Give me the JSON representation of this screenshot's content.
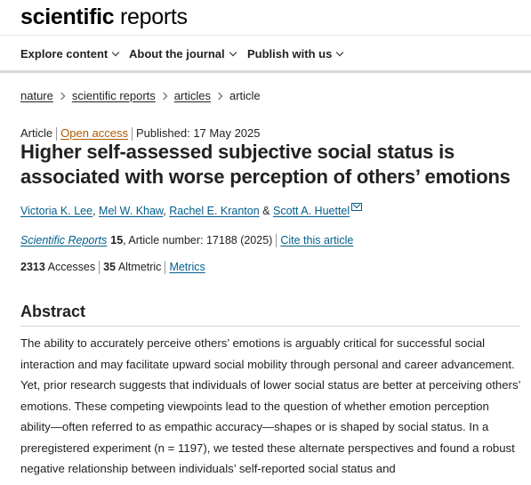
{
  "brand": {
    "bold": "scientific",
    "light": " reports"
  },
  "nav": [
    {
      "label": "Explore content"
    },
    {
      "label": "About the journal"
    },
    {
      "label": "Publish with us"
    }
  ],
  "breadcrumb": [
    {
      "label": "nature"
    },
    {
      "label": "scientific reports"
    },
    {
      "label": "articles"
    },
    {
      "label": "article"
    }
  ],
  "meta": {
    "type": "Article",
    "access": "Open access",
    "published": "Published: 17 May 2025"
  },
  "title": "Higher self-assessed subjective social status is associated with worse perception of others’ emotions",
  "authors": [
    "Victoria K. Lee",
    "Mel W. Khaw",
    "Rachel E. Kranton",
    "Scott A. Huettel"
  ],
  "author_sep": ", ",
  "author_and": " & ",
  "citation": {
    "journal": "Scientific Reports",
    "volume": "15",
    "article_number": ", Article number: 17188 (2025)",
    "cite_label": "Cite this article"
  },
  "metrics": {
    "accesses_count": "2313",
    "accesses_label": "Accesses",
    "altmetric_count": "35",
    "altmetric_label": "Altmetric",
    "metrics_link": "Metrics"
  },
  "abstract": {
    "heading": "Abstract",
    "text": "The ability to accurately perceive others’ emotions is arguably critical for successful social interaction and may facilitate upward social mobility through personal and career advancement. Yet, prior research suggests that individuals of lower social status are better at perceiving others’ emotions. These competing viewpoints lead to the question of whether emotion perception ability—often referred to as empathic accuracy—shapes or is shaped by social status. In a preregistered experiment (n = 1197), we tested these alternate perspectives and found a robust negative relationship between individuals’ self-reported social status and"
  }
}
